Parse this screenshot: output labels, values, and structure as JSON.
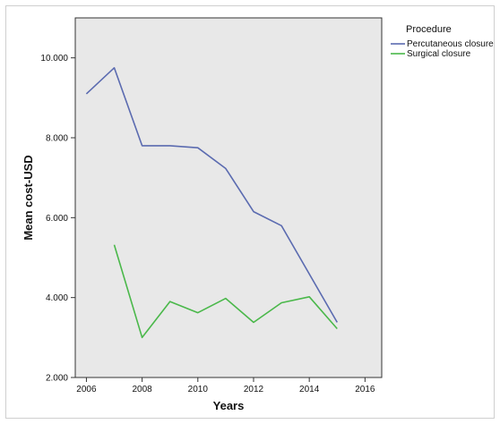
{
  "chart_data": {
    "type": "line",
    "title": "",
    "xlabel": "Years",
    "ylabel": "Mean cost-USD",
    "xlim": [
      2005.6,
      2016.6
    ],
    "ylim": [
      2000,
      11000
    ],
    "x_ticks": [
      2006,
      2008,
      2010,
      2012,
      2014,
      2016
    ],
    "x_tick_labels": [
      "2006",
      "2008",
      "2010",
      "2012",
      "2014",
      "2016"
    ],
    "y_ticks": [
      2000,
      4000,
      6000,
      8000,
      10000
    ],
    "y_tick_labels": [
      "2.000",
      "4.000",
      "6.000",
      "8.000",
      "10.000"
    ],
    "grid": false,
    "legend_title": "Procedure",
    "legend_position": "right-outside-top",
    "background": "#e8e8e8",
    "series": [
      {
        "name": "Percutaneous closure",
        "color": "#5b6bb0",
        "x": [
          2006,
          2007,
          2008,
          2009,
          2010,
          2011,
          2012,
          2013,
          2015
        ],
        "values": [
          9100,
          9750,
          7800,
          7800,
          7750,
          7230,
          6150,
          5800,
          3380
        ]
      },
      {
        "name": "Surgical closure",
        "color": "#4ab84a",
        "x": [
          2007,
          2008,
          2009,
          2010,
          2011,
          2012,
          2013,
          2014,
          2015
        ],
        "values": [
          5320,
          3000,
          3900,
          3620,
          3980,
          3380,
          3870,
          4020,
          3220
        ]
      }
    ]
  }
}
